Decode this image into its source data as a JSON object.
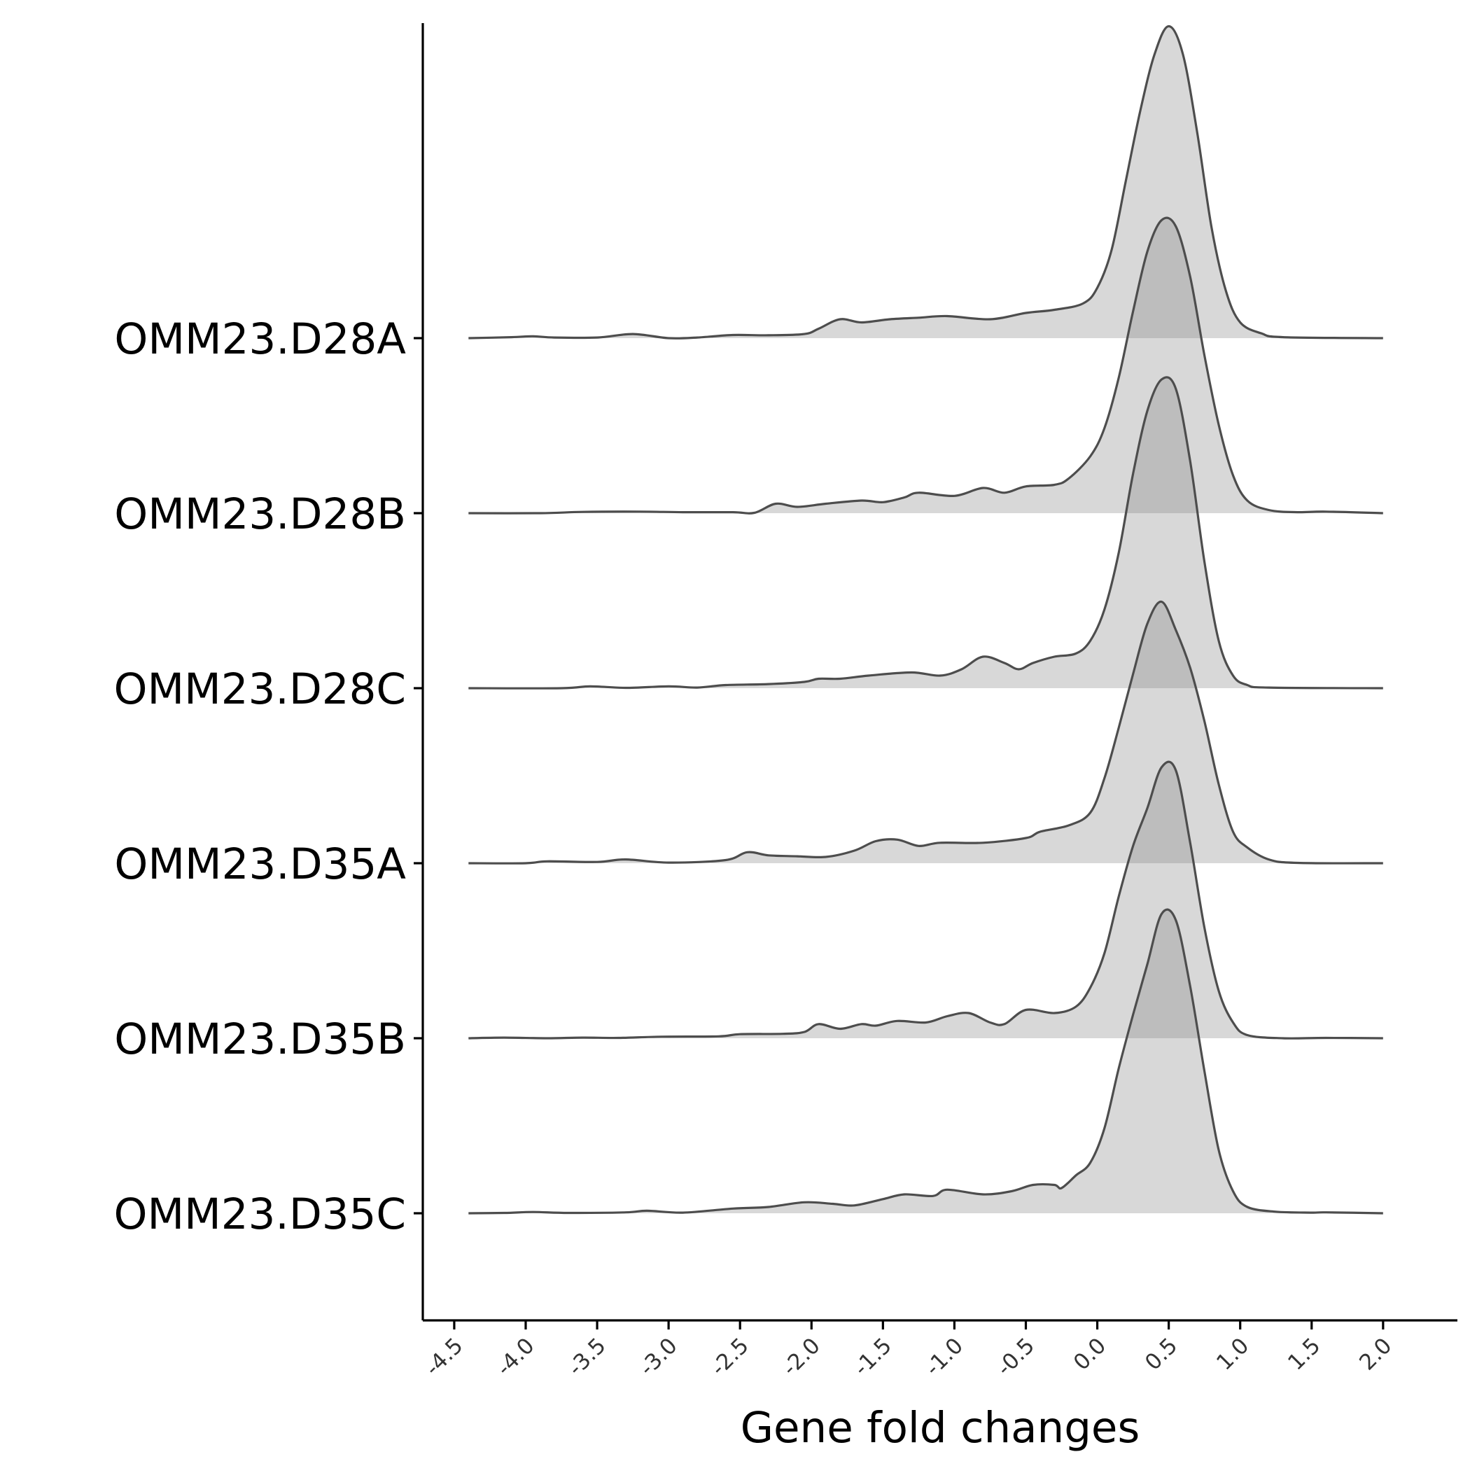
{
  "chart_data": {
    "type": "ridgeline",
    "title": "",
    "xlabel": "Gene fold changes",
    "ylabel": "",
    "xlim": [
      -4.72,
      2.52
    ],
    "x_ticks": [
      -4.5,
      -4.0,
      -3.5,
      -3.0,
      -2.5,
      -2.0,
      -1.5,
      -1.0,
      -0.5,
      0.0,
      0.5,
      1.0,
      1.5,
      2.0
    ],
    "x_tick_labels": [
      "-4.5",
      "-4.0",
      "-3.5",
      "-3.0",
      "-2.5",
      "-2.0",
      "-1.5",
      "-1.0",
      "-0.5",
      "0.0",
      "0.5",
      "1.0",
      "1.5",
      "2.0"
    ],
    "grid": false,
    "legend": "none",
    "fill_color": "#7f7f7f",
    "fill_opacity": 0.3,
    "line_color": "#4d4d4d",
    "axis_color": "#000000",
    "ridge_height_units": 1.8,
    "categories_top_to_bottom": [
      "OMM23.D28A",
      "OMM23.D28B",
      "OMM23.D28C",
      "OMM23.D35A",
      "OMM23.D35B",
      "OMM23.D35C"
    ],
    "series": [
      {
        "name": "OMM23.D28A",
        "density": [
          [
            -4.4,
            0.0
          ],
          [
            -4.1,
            0.003
          ],
          [
            -3.95,
            0.006
          ],
          [
            -3.8,
            0.002
          ],
          [
            -3.5,
            0.002
          ],
          [
            -3.25,
            0.013
          ],
          [
            -3.0,
            0.0
          ],
          [
            -2.8,
            0.002
          ],
          [
            -2.55,
            0.01
          ],
          [
            -2.3,
            0.009
          ],
          [
            -2.05,
            0.013
          ],
          [
            -1.95,
            0.03
          ],
          [
            -1.8,
            0.06
          ],
          [
            -1.65,
            0.05
          ],
          [
            -1.45,
            0.06
          ],
          [
            -1.25,
            0.065
          ],
          [
            -1.05,
            0.07
          ],
          [
            -0.75,
            0.06
          ],
          [
            -0.5,
            0.08
          ],
          [
            -0.3,
            0.09
          ],
          [
            -0.1,
            0.11
          ],
          [
            0.0,
            0.16
          ],
          [
            0.1,
            0.28
          ],
          [
            0.2,
            0.5
          ],
          [
            0.3,
            0.72
          ],
          [
            0.4,
            0.9
          ],
          [
            0.5,
            0.99
          ],
          [
            0.6,
            0.9
          ],
          [
            0.7,
            0.65
          ],
          [
            0.8,
            0.35
          ],
          [
            0.9,
            0.15
          ],
          [
            1.0,
            0.05
          ],
          [
            1.15,
            0.015
          ],
          [
            1.3,
            0.003
          ],
          [
            2.0,
            0.0
          ]
        ]
      },
      {
        "name": "OMM23.D28B",
        "density": [
          [
            -4.4,
            0.0
          ],
          [
            -3.9,
            0.0
          ],
          [
            -3.6,
            0.004
          ],
          [
            -3.2,
            0.005
          ],
          [
            -2.9,
            0.003
          ],
          [
            -2.55,
            0.003
          ],
          [
            -2.4,
            0.001
          ],
          [
            -2.25,
            0.03
          ],
          [
            -2.1,
            0.02
          ],
          [
            -1.9,
            0.03
          ],
          [
            -1.65,
            0.04
          ],
          [
            -1.5,
            0.035
          ],
          [
            -1.35,
            0.05
          ],
          [
            -1.25,
            0.065
          ],
          [
            -1.0,
            0.055
          ],
          [
            -0.8,
            0.08
          ],
          [
            -0.65,
            0.065
          ],
          [
            -0.5,
            0.085
          ],
          [
            -0.3,
            0.09
          ],
          [
            -0.2,
            0.11
          ],
          [
            -0.05,
            0.18
          ],
          [
            0.05,
            0.27
          ],
          [
            0.15,
            0.43
          ],
          [
            0.25,
            0.64
          ],
          [
            0.35,
            0.83
          ],
          [
            0.45,
            0.93
          ],
          [
            0.55,
            0.91
          ],
          [
            0.65,
            0.75
          ],
          [
            0.75,
            0.5
          ],
          [
            0.85,
            0.28
          ],
          [
            0.95,
            0.12
          ],
          [
            1.05,
            0.04
          ],
          [
            1.2,
            0.01
          ],
          [
            1.4,
            0.003
          ],
          [
            1.6,
            0.005
          ],
          [
            2.0,
            0.0
          ]
        ]
      },
      {
        "name": "OMM23.D28C",
        "density": [
          [
            -4.4,
            0.0
          ],
          [
            -3.75,
            0.0
          ],
          [
            -3.55,
            0.006
          ],
          [
            -3.3,
            0.001
          ],
          [
            -3.0,
            0.006
          ],
          [
            -2.8,
            0.002
          ],
          [
            -2.6,
            0.01
          ],
          [
            -2.3,
            0.013
          ],
          [
            -2.05,
            0.02
          ],
          [
            -1.95,
            0.03
          ],
          [
            -1.8,
            0.03
          ],
          [
            -1.6,
            0.04
          ],
          [
            -1.3,
            0.05
          ],
          [
            -1.1,
            0.04
          ],
          [
            -0.95,
            0.06
          ],
          [
            -0.8,
            0.1
          ],
          [
            -0.65,
            0.08
          ],
          [
            -0.55,
            0.06
          ],
          [
            -0.45,
            0.08
          ],
          [
            -0.3,
            0.1
          ],
          [
            -0.15,
            0.11
          ],
          [
            -0.05,
            0.15
          ],
          [
            0.05,
            0.25
          ],
          [
            0.15,
            0.43
          ],
          [
            0.25,
            0.68
          ],
          [
            0.35,
            0.88
          ],
          [
            0.45,
            0.98
          ],
          [
            0.55,
            0.95
          ],
          [
            0.65,
            0.72
          ],
          [
            0.75,
            0.4
          ],
          [
            0.85,
            0.15
          ],
          [
            0.95,
            0.04
          ],
          [
            1.05,
            0.01
          ],
          [
            1.2,
            0.002
          ],
          [
            2.0,
            0.0
          ]
        ]
      },
      {
        "name": "OMM23.D35A",
        "density": [
          [
            -4.4,
            0.0
          ],
          [
            -4.0,
            0.0
          ],
          [
            -3.85,
            0.006
          ],
          [
            -3.5,
            0.004
          ],
          [
            -3.3,
            0.012
          ],
          [
            -3.0,
            0.002
          ],
          [
            -2.6,
            0.01
          ],
          [
            -2.45,
            0.035
          ],
          [
            -2.3,
            0.025
          ],
          [
            -2.1,
            0.022
          ],
          [
            -1.9,
            0.02
          ],
          [
            -1.7,
            0.04
          ],
          [
            -1.55,
            0.07
          ],
          [
            -1.4,
            0.075
          ],
          [
            -1.25,
            0.055
          ],
          [
            -1.1,
            0.065
          ],
          [
            -0.8,
            0.065
          ],
          [
            -0.5,
            0.08
          ],
          [
            -0.4,
            0.1
          ],
          [
            -0.2,
            0.12
          ],
          [
            -0.05,
            0.16
          ],
          [
            0.05,
            0.27
          ],
          [
            0.15,
            0.43
          ],
          [
            0.25,
            0.6
          ],
          [
            0.35,
            0.76
          ],
          [
            0.45,
            0.83
          ],
          [
            0.55,
            0.74
          ],
          [
            0.65,
            0.62
          ],
          [
            0.75,
            0.45
          ],
          [
            0.85,
            0.25
          ],
          [
            0.95,
            0.1
          ],
          [
            1.05,
            0.05
          ],
          [
            1.2,
            0.012
          ],
          [
            1.4,
            0.001
          ],
          [
            2.0,
            0.0
          ]
        ]
      },
      {
        "name": "OMM23.D35B",
        "density": [
          [
            -4.4,
            0.0
          ],
          [
            -4.15,
            0.002
          ],
          [
            -3.85,
            0.0
          ],
          [
            -3.6,
            0.002
          ],
          [
            -3.35,
            0.001
          ],
          [
            -3.05,
            0.005
          ],
          [
            -2.65,
            0.006
          ],
          [
            -2.5,
            0.013
          ],
          [
            -2.2,
            0.014
          ],
          [
            -2.05,
            0.02
          ],
          [
            -1.95,
            0.045
          ],
          [
            -1.8,
            0.03
          ],
          [
            -1.65,
            0.045
          ],
          [
            -1.55,
            0.04
          ],
          [
            -1.4,
            0.055
          ],
          [
            -1.2,
            0.05
          ],
          [
            -1.05,
            0.07
          ],
          [
            -0.9,
            0.08
          ],
          [
            -0.75,
            0.05
          ],
          [
            -0.65,
            0.045
          ],
          [
            -0.5,
            0.09
          ],
          [
            -0.3,
            0.08
          ],
          [
            -0.15,
            0.1
          ],
          [
            -0.05,
            0.16
          ],
          [
            0.05,
            0.27
          ],
          [
            0.15,
            0.45
          ],
          [
            0.25,
            0.61
          ],
          [
            0.35,
            0.73
          ],
          [
            0.45,
            0.86
          ],
          [
            0.55,
            0.85
          ],
          [
            0.65,
            0.62
          ],
          [
            0.75,
            0.35
          ],
          [
            0.85,
            0.15
          ],
          [
            0.95,
            0.05
          ],
          [
            1.05,
            0.01
          ],
          [
            1.3,
            0.0
          ],
          [
            1.6,
            0.001
          ],
          [
            2.0,
            0.0
          ]
        ]
      },
      {
        "name": "OMM23.D35C",
        "density": [
          [
            -4.4,
            0.0
          ],
          [
            -4.15,
            0.001
          ],
          [
            -3.95,
            0.004
          ],
          [
            -3.7,
            0.001
          ],
          [
            -3.3,
            0.003
          ],
          [
            -3.15,
            0.008
          ],
          [
            -2.9,
            0.002
          ],
          [
            -2.55,
            0.015
          ],
          [
            -2.3,
            0.02
          ],
          [
            -2.05,
            0.035
          ],
          [
            -1.85,
            0.03
          ],
          [
            -1.7,
            0.025
          ],
          [
            -1.5,
            0.045
          ],
          [
            -1.35,
            0.06
          ],
          [
            -1.15,
            0.055
          ],
          [
            -1.05,
            0.075
          ],
          [
            -0.8,
            0.06
          ],
          [
            -0.6,
            0.07
          ],
          [
            -0.45,
            0.09
          ],
          [
            -0.3,
            0.09
          ],
          [
            -0.25,
            0.08
          ],
          [
            -0.15,
            0.12
          ],
          [
            -0.05,
            0.16
          ],
          [
            0.05,
            0.27
          ],
          [
            0.15,
            0.46
          ],
          [
            0.25,
            0.63
          ],
          [
            0.35,
            0.79
          ],
          [
            0.45,
            0.95
          ],
          [
            0.55,
            0.93
          ],
          [
            0.65,
            0.72
          ],
          [
            0.75,
            0.45
          ],
          [
            0.85,
            0.2
          ],
          [
            0.95,
            0.07
          ],
          [
            1.05,
            0.02
          ],
          [
            1.25,
            0.005
          ],
          [
            1.5,
            0.002
          ],
          [
            1.6,
            0.003
          ],
          [
            2.0,
            0.0
          ]
        ]
      }
    ]
  }
}
